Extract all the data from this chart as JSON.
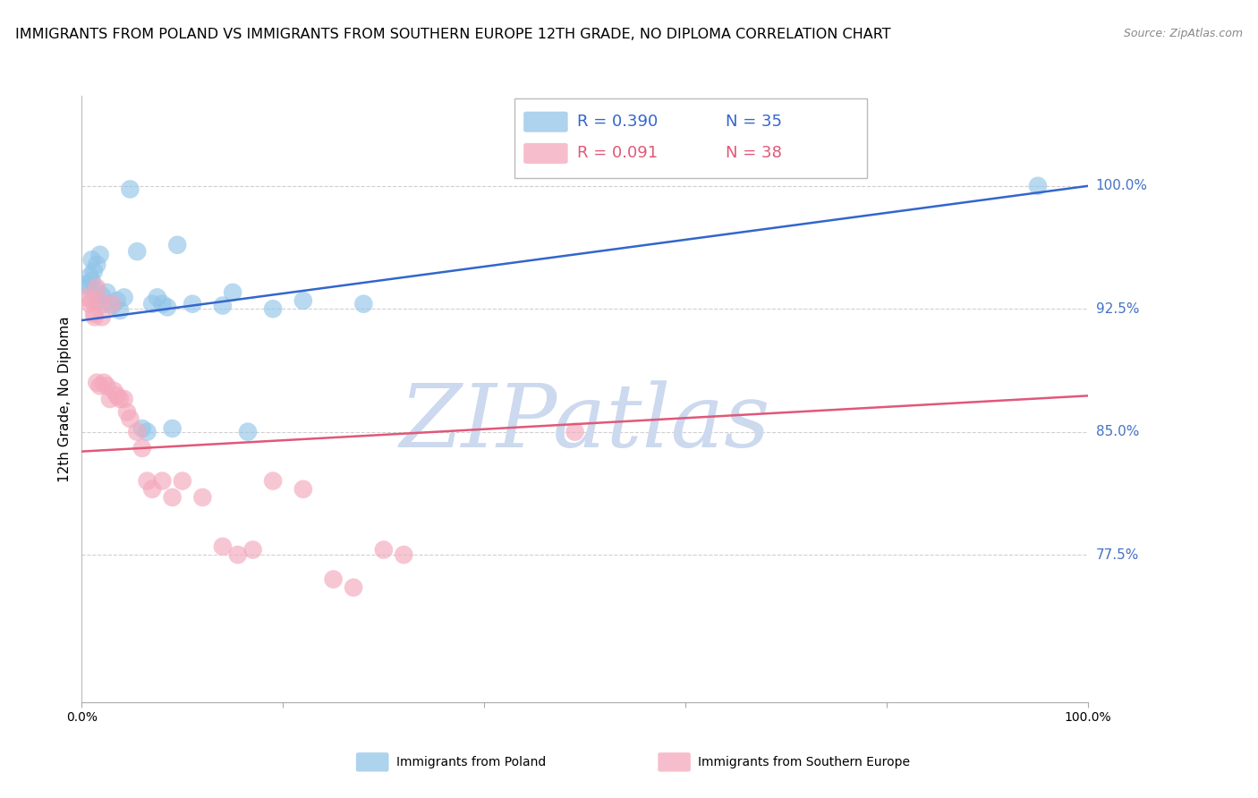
{
  "title": "IMMIGRANTS FROM POLAND VS IMMIGRANTS FROM SOUTHERN EUROPE 12TH GRADE, NO DIPLOMA CORRELATION CHART",
  "source": "Source: ZipAtlas.com",
  "ylabel": "12th Grade, No Diploma",
  "ytick_labels": [
    "100.0%",
    "92.5%",
    "85.0%",
    "77.5%"
  ],
  "ytick_values": [
    1.0,
    0.925,
    0.85,
    0.775
  ],
  "ymin": 0.685,
  "ymax": 1.055,
  "xmin": 0.0,
  "xmax": 1.0,
  "blue_label": "Immigrants from Poland",
  "pink_label": "Immigrants from Southern Europe",
  "blue_R": 0.39,
  "blue_N": 35,
  "pink_R": 0.091,
  "pink_N": 38,
  "blue_color": "#92c5e8",
  "pink_color": "#f4a8bc",
  "blue_line_color": "#3366cc",
  "pink_line_color": "#e05878",
  "ytick_color": "#4472c4",
  "background_color": "#ffffff",
  "grid_color": "#d0d0d0",
  "title_fontsize": 11.5,
  "source_fontsize": 9,
  "ylabel_fontsize": 11,
  "ytick_fontsize": 11,
  "blue_line_x0": 0.0,
  "blue_line_y0": 0.918,
  "blue_line_x1": 1.0,
  "blue_line_y1": 1.0,
  "pink_line_x0": 0.0,
  "pink_line_y0": 0.838,
  "pink_line_x1": 1.0,
  "pink_line_y1": 0.872,
  "blue_x": [
    0.005,
    0.007,
    0.008,
    0.01,
    0.01,
    0.012,
    0.014,
    0.015,
    0.015,
    0.018,
    0.02,
    0.022,
    0.025,
    0.03,
    0.035,
    0.038,
    0.042,
    0.048,
    0.055,
    0.06,
    0.065,
    0.07,
    0.075,
    0.08,
    0.085,
    0.09,
    0.095,
    0.11,
    0.14,
    0.165,
    0.19,
    0.22,
    0.28,
    0.95,
    0.15
  ],
  "blue_y": [
    0.94,
    0.938,
    0.945,
    0.942,
    0.955,
    0.948,
    0.937,
    0.952,
    0.93,
    0.958,
    0.933,
    0.928,
    0.935,
    0.927,
    0.93,
    0.924,
    0.932,
    0.998,
    0.96,
    0.852,
    0.85,
    0.928,
    0.932,
    0.928,
    0.926,
    0.852,
    0.964,
    0.928,
    0.927,
    0.85,
    0.925,
    0.93,
    0.928,
    1.0,
    0.935
  ],
  "pink_x": [
    0.005,
    0.008,
    0.01,
    0.012,
    0.013,
    0.015,
    0.015,
    0.018,
    0.018,
    0.02,
    0.022,
    0.025,
    0.028,
    0.03,
    0.032,
    0.035,
    0.038,
    0.042,
    0.045,
    0.048,
    0.055,
    0.06,
    0.065,
    0.07,
    0.08,
    0.09,
    0.1,
    0.12,
    0.14,
    0.155,
    0.17,
    0.19,
    0.22,
    0.25,
    0.27,
    0.3,
    0.32,
    0.49
  ],
  "pink_y": [
    0.932,
    0.928,
    0.93,
    0.922,
    0.92,
    0.938,
    0.88,
    0.878,
    0.93,
    0.92,
    0.88,
    0.878,
    0.87,
    0.928,
    0.875,
    0.872,
    0.87,
    0.87,
    0.862,
    0.858,
    0.85,
    0.84,
    0.82,
    0.815,
    0.82,
    0.81,
    0.82,
    0.81,
    0.78,
    0.775,
    0.778,
    0.82,
    0.815,
    0.76,
    0.755,
    0.778,
    0.775,
    0.85
  ],
  "watermark": "ZIPatlas",
  "watermark_color": "#ccd9ee",
  "watermark_fontsize": 72
}
